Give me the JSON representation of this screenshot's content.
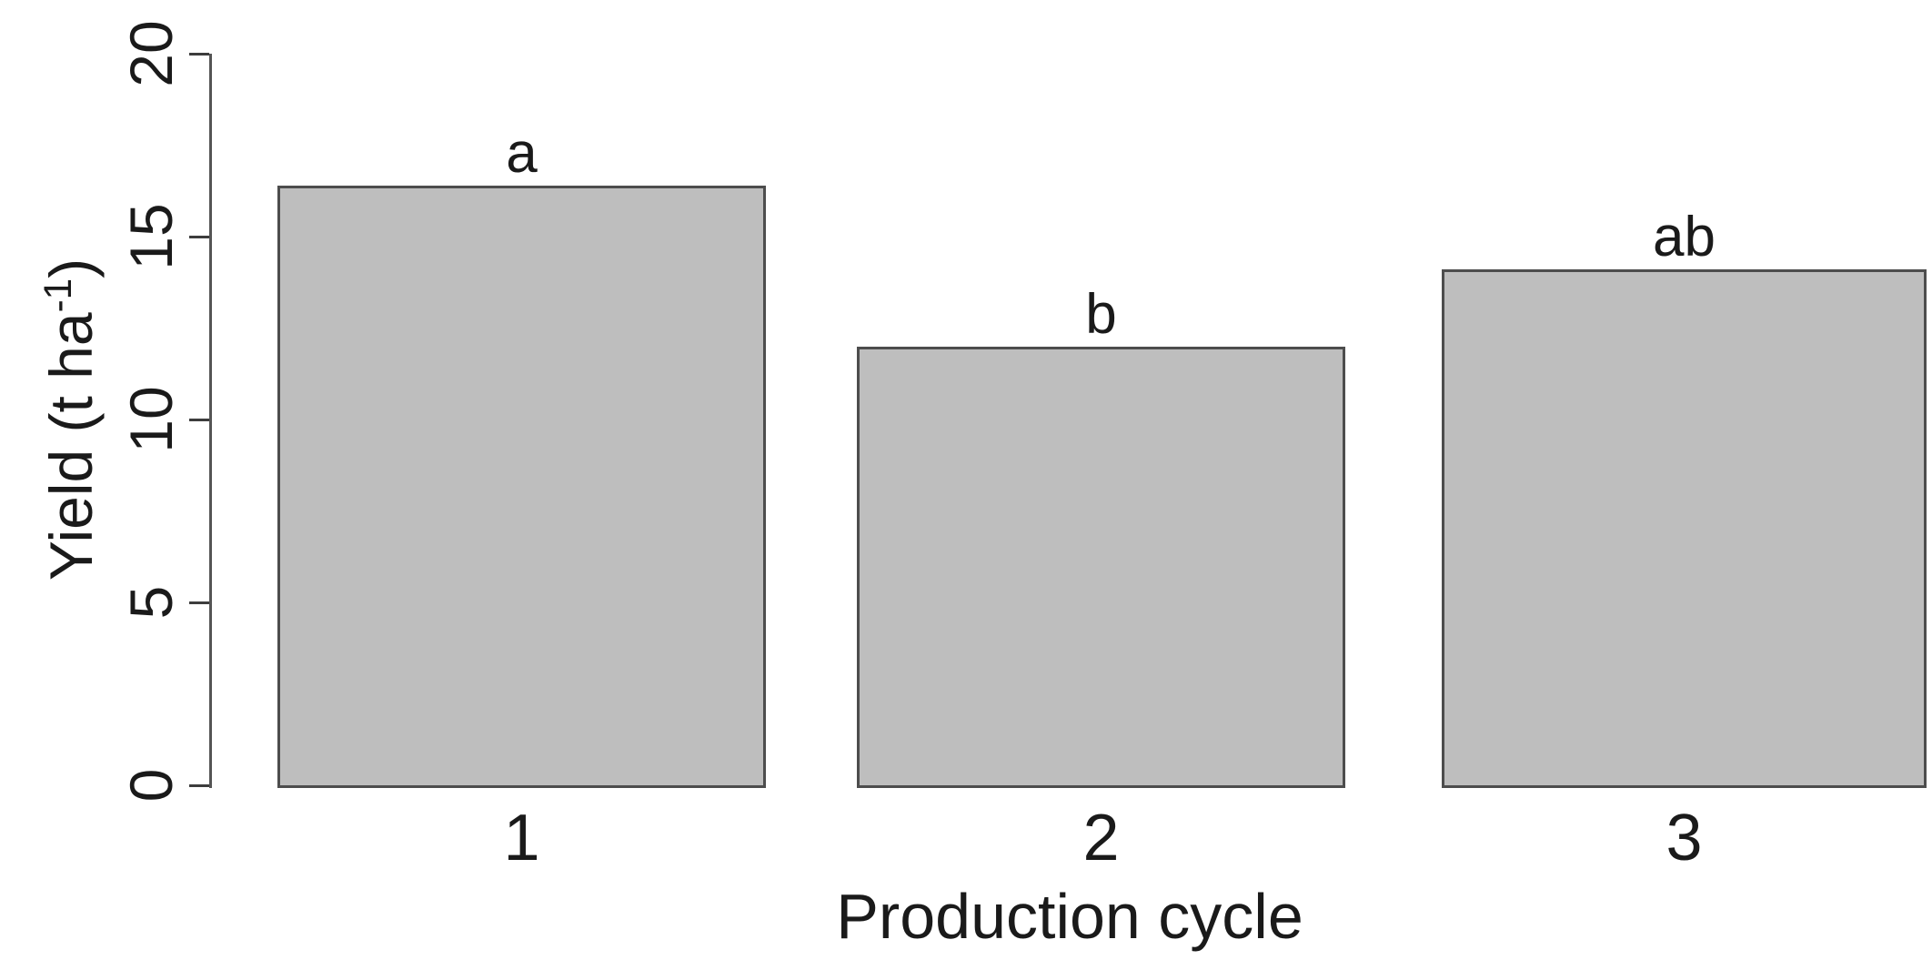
{
  "chart_data": {
    "type": "bar",
    "title": "",
    "categories": [
      "1",
      "2",
      "3"
    ],
    "values": [
      16.4,
      12.0,
      14.1
    ],
    "bar_labels": [
      "a",
      "b",
      "ab"
    ],
    "xlabel": "Production cycle",
    "ylabel": "Yield (t ha⁻¹)",
    "ylabel_parts": {
      "base": "Yield (t ha",
      "sup": "-1",
      "close": ")"
    },
    "yticks": [
      0,
      5,
      10,
      15,
      20
    ],
    "ylim": [
      0,
      20
    ],
    "grid": false,
    "legend": false,
    "bar_fill": "#bebebe",
    "bar_border": "#4d4d4d",
    "axis_color": "#555555",
    "text_color": "#1a1a1a"
  }
}
